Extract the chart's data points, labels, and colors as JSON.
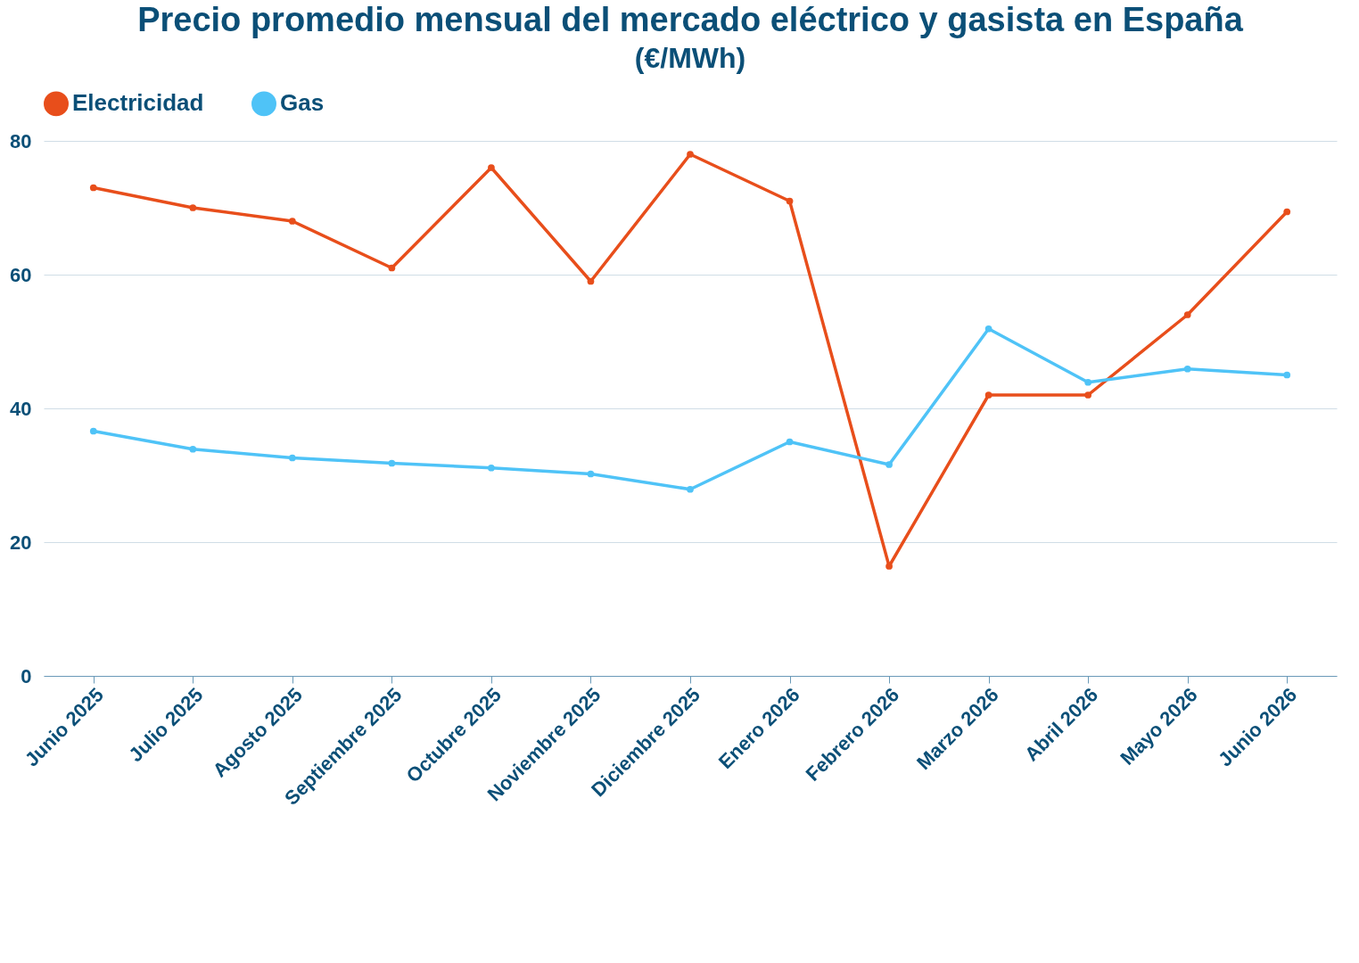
{
  "chart_data": {
    "type": "line",
    "title": "Precio promedio mensual del mercado eléctrico y gasista en España",
    "subtitle": "(€/MWh)",
    "categories": [
      "Junio 2025",
      "Julio 2025",
      "Agosto 2025",
      "Septiembre 2025",
      "Octubre 2025",
      "Noviembre 2025",
      "Diciembre 2025",
      "Enero 2026",
      "Febrero 2026",
      "Marzo 2026",
      "Abril 2026",
      "Mayo 2026",
      "Junio 2026"
    ],
    "series": [
      {
        "name": "Electricidad",
        "color": "#e84e1b",
        "values": [
          73,
          70,
          68,
          61,
          76,
          59,
          78,
          71,
          16.4,
          42,
          42,
          54,
          69.4
        ]
      },
      {
        "name": "Gas",
        "color": "#4fc3f7",
        "values": [
          36.6,
          33.9,
          32.6,
          31.8,
          31.1,
          30.2,
          27.9,
          35,
          31.6,
          51.9,
          43.9,
          45.9,
          45
        ]
      }
    ],
    "ylim": [
      0,
      80
    ],
    "yticks": [
      0,
      20,
      40,
      60,
      80
    ],
    "grid": "y",
    "legend": "top",
    "marker": "circle",
    "line_style": "solid"
  }
}
